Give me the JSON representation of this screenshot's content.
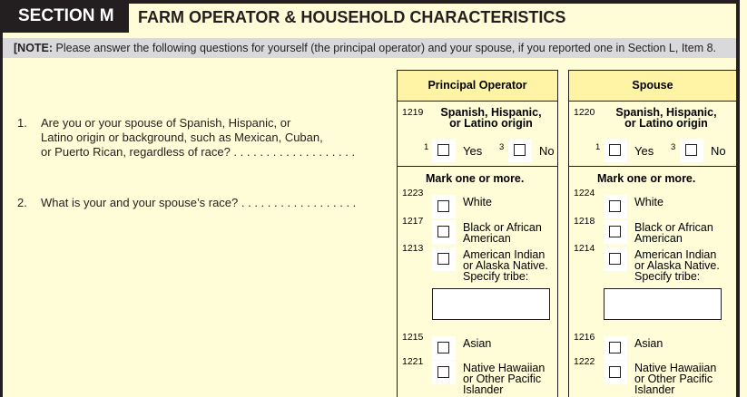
{
  "section": {
    "label": "SECTION M",
    "title": "FARM OPERATOR & HOUSEHOLD CHARACTERISTICS"
  },
  "note": {
    "prefix": "[NOTE:",
    "text": " Please answer the following questions for yourself (the principal operator) and your spouse, if you reported one in Section L, Item 8."
  },
  "questions": [
    {
      "number": "1.",
      "lines": [
        "Are you or your spouse of Spanish, Hispanic, or",
        "Latino origin or background, such as Mexican, Cuban,",
        "or Puerto Rican, regardless of race? . . . . . . . . . . . . . . . . . . ."
      ]
    },
    {
      "number": "2.",
      "lines": [
        "What is your and your spouse’s race? . . . . . . . . . . . . . . . . . ."
      ]
    }
  ],
  "columns": [
    {
      "header": "Principal Operator",
      "origin_code": "1219",
      "origin_label": [
        "Spanish, Hispanic,",
        "or Latino origin"
      ],
      "yes_code": "1",
      "yes": "Yes",
      "no_code": "3",
      "no": "No",
      "mark": "Mark one or more.",
      "races": [
        {
          "code": "1223",
          "label": [
            "White"
          ]
        },
        {
          "code": "1217",
          "label": [
            "Black or African",
            "American"
          ]
        },
        {
          "code": "1213",
          "label": [
            "American Indian",
            "or Alaska Native.",
            "Specify tribe:"
          ]
        },
        {
          "code": "1215",
          "label": [
            "Asian"
          ]
        },
        {
          "code": "1221",
          "label": [
            "Native Hawaiian",
            "or Other Pacific",
            "Islander"
          ]
        }
      ]
    },
    {
      "header": "Spouse",
      "origin_code": "1220",
      "origin_label": [
        "Spanish, Hispanic,",
        "or Latino origin"
      ],
      "yes_code": "1",
      "yes": "Yes",
      "no_code": "3",
      "no": "No",
      "mark": "Mark one or more.",
      "races": [
        {
          "code": "1224",
          "label": [
            "White"
          ]
        },
        {
          "code": "1218",
          "label": [
            "Black or African",
            "American"
          ]
        },
        {
          "code": "1214",
          "label": [
            "American Indian",
            "or Alaska Native.",
            "Specify tribe:"
          ]
        },
        {
          "code": "1216",
          "label": [
            "Asian"
          ]
        },
        {
          "code": "1222",
          "label": [
            "Native Hawaiian",
            "or Other Pacific",
            "Islander"
          ]
        }
      ]
    }
  ],
  "colors": {
    "background": "#fffcd8",
    "header": "#fff4a6",
    "note_bar": "#d9d9db",
    "dark": "#231f20"
  }
}
